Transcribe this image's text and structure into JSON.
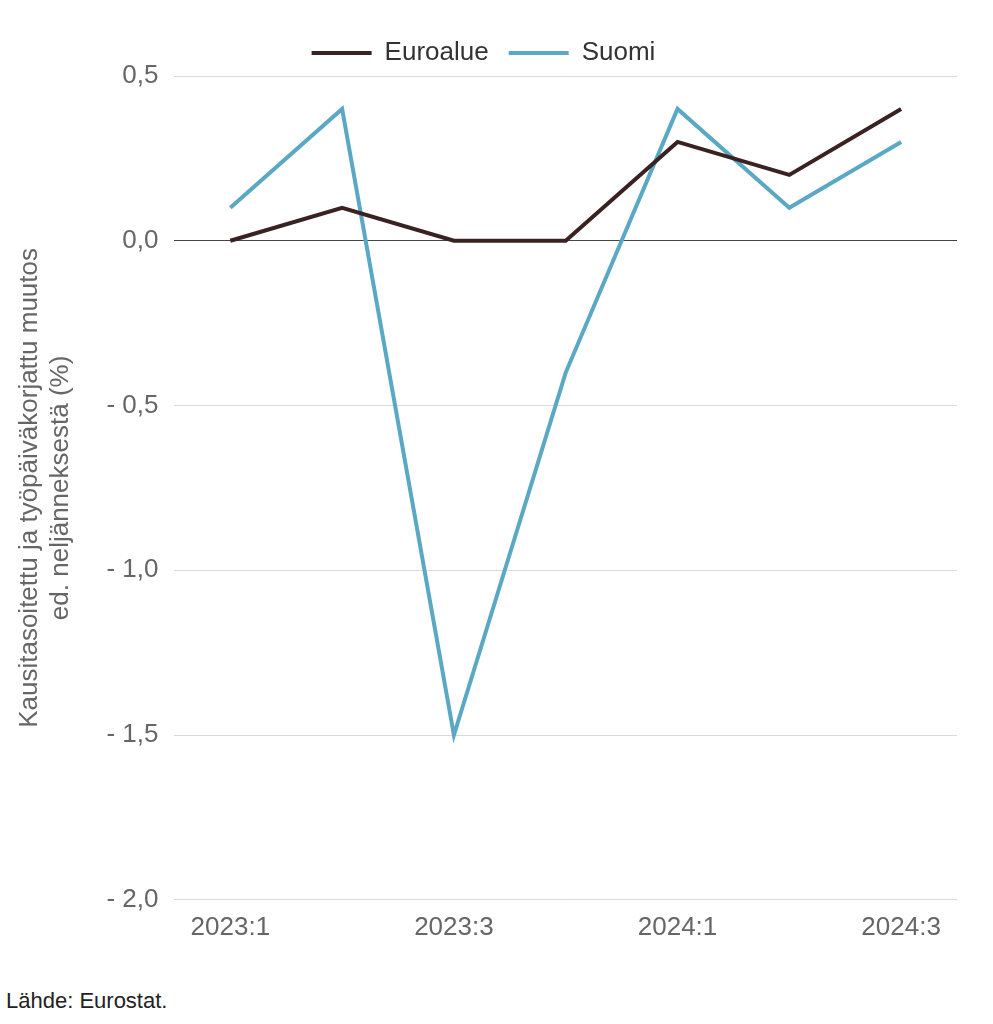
{
  "chart_data": {
    "type": "line",
    "categories": [
      "2023:1",
      null,
      "2023:3",
      null,
      "2024:1",
      null,
      "2024:3"
    ],
    "series": [
      {
        "name": "Euroalue",
        "color": "#3b2222",
        "values": [
          0.0,
          0.1,
          0.0,
          0.0,
          0.3,
          0.2,
          0.4
        ]
      },
      {
        "name": "Suomi",
        "color": "#5ba8c4",
        "values": [
          0.1,
          0.4,
          -1.5,
          -0.4,
          0.4,
          0.1,
          0.3
        ]
      }
    ],
    "ylim": [
      -2.0,
      0.5
    ],
    "yticks": [
      {
        "value": -2.0,
        "label": "- 2,0"
      },
      {
        "value": -1.5,
        "label": "- 1,5"
      },
      {
        "value": -1.0,
        "label": "- 1,0"
      },
      {
        "value": -0.5,
        "label": "- 0,5"
      },
      {
        "value": 0.0,
        "label": "0,0"
      },
      {
        "value": 0.5,
        "label": "0,5"
      }
    ],
    "ylabel": [
      "Kausitasoitettu ja työpäiväkorjattu muutos",
      "ed. neljänneksestä (%)"
    ],
    "source": "Lähde: Eurostat.",
    "legend": "top",
    "grid": true
  }
}
